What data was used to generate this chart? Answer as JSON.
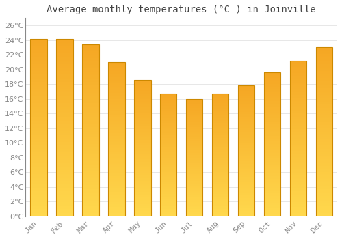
{
  "title": "Average monthly temperatures (°C ) in Joinville",
  "months": [
    "Jan",
    "Feb",
    "Mar",
    "Apr",
    "May",
    "Jun",
    "Jul",
    "Aug",
    "Sep",
    "Oct",
    "Nov",
    "Dec"
  ],
  "values": [
    24.1,
    24.1,
    23.4,
    21.0,
    18.6,
    16.7,
    16.0,
    16.7,
    17.8,
    19.6,
    21.2,
    23.0
  ],
  "bar_color_bottom": "#FFD84D",
  "bar_color_top": "#F5A623",
  "bar_edge_color": "#CC8800",
  "background_color": "#FFFFFF",
  "plot_bg_color": "#FFFFFF",
  "grid_color": "#DDDDDD",
  "ylim": [
    0,
    27
  ],
  "ytick_step": 2,
  "title_fontsize": 10,
  "tick_fontsize": 8,
  "tick_color": "#888888",
  "title_color": "#444444",
  "font_family": "monospace",
  "bar_width": 0.65
}
